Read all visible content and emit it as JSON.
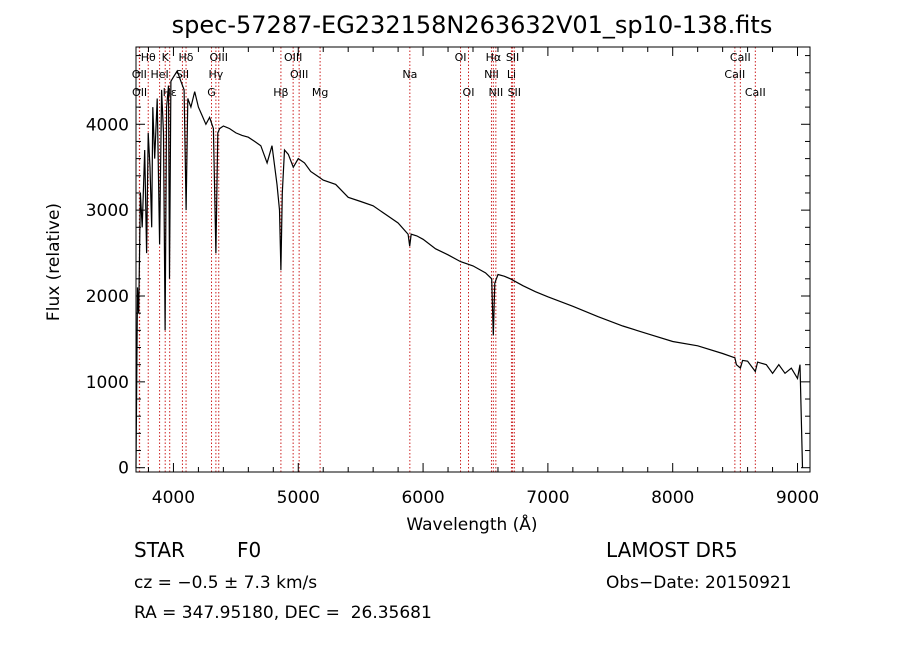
{
  "chart_data": {
    "type": "line",
    "title": "spec-57287-EG232158N263632V01_sp10-138.fits",
    "xlabel": "Wavelength (Å)",
    "ylabel": "Flux (relative)",
    "xlim": [
      3700,
      9100
    ],
    "ylim": [
      -50,
      4900
    ],
    "x_ticks": [
      4000,
      5000,
      6000,
      7000,
      8000,
      9000
    ],
    "y_ticks": [
      0,
      1000,
      2000,
      3000,
      4000
    ],
    "x_tick_labels": [
      "4000",
      "5000",
      "6000",
      "7000",
      "8000",
      "9000"
    ],
    "y_tick_labels": [
      "0",
      "1000",
      "2000",
      "3000",
      "4000"
    ],
    "grid": false,
    "line_color": "#000000",
    "marker_color": "#cc2222",
    "series": [
      {
        "x": [
          3700,
          3712,
          3722,
          3735,
          3750,
          3770,
          3785,
          3798,
          3812,
          3826,
          3835,
          3850,
          3870,
          3889,
          3905,
          3920,
          3933,
          3945,
          3960,
          3968,
          3980,
          4000,
          4030,
          4060,
          4085,
          4101,
          4115,
          4140,
          4170,
          4200,
          4230,
          4260,
          4290,
          4320,
          4340,
          4355,
          4370,
          4400,
          4450,
          4500,
          4550,
          4600,
          4650,
          4700,
          4750,
          4790,
          4830,
          4850,
          4861,
          4872,
          4890,
          4920,
          4960,
          5000,
          5050,
          5100,
          5150,
          5200,
          5300,
          5400,
          5500,
          5600,
          5700,
          5800,
          5880,
          5893,
          5905,
          5950,
          6000,
          6100,
          6200,
          6300,
          6400,
          6500,
          6550,
          6563,
          6575,
          6600,
          6650,
          6700,
          6800,
          6900,
          7000,
          7200,
          7400,
          7600,
          7800,
          8000,
          8200,
          8400,
          8498,
          8510,
          8542,
          8560,
          8600,
          8662,
          8680,
          8750,
          8800,
          8850,
          8900,
          8950,
          9000,
          9020,
          9040
        ],
        "y": [
          0,
          2100,
          1800,
          3200,
          2800,
          3700,
          2500,
          3900,
          3500,
          2800,
          4200,
          3600,
          4300,
          2600,
          4400,
          3900,
          1600,
          4200,
          4450,
          2200,
          4500,
          4550,
          4620,
          4500,
          4400,
          3000,
          4300,
          4200,
          4380,
          4200,
          4100,
          4000,
          4080,
          3950,
          2500,
          3900,
          3950,
          3980,
          3950,
          3900,
          3870,
          3850,
          3800,
          3750,
          3550,
          3750,
          3300,
          3000,
          2300,
          3200,
          3700,
          3650,
          3500,
          3600,
          3550,
          3450,
          3400,
          3350,
          3300,
          3150,
          3100,
          3050,
          2950,
          2850,
          2720,
          2580,
          2720,
          2700,
          2660,
          2550,
          2480,
          2400,
          2350,
          2270,
          2200,
          1540,
          2150,
          2250,
          2230,
          2200,
          2120,
          2050,
          1990,
          1880,
          1760,
          1650,
          1560,
          1470,
          1420,
          1330,
          1280,
          1200,
          1160,
          1250,
          1240,
          1120,
          1230,
          1200,
          1100,
          1200,
          1100,
          1160,
          1040,
          1200,
          0
        ]
      }
    ],
    "lines": [
      {
        "label": "Hθ",
        "x": 3798,
        "row": 0
      },
      {
        "label": "OII",
        "x": 3727,
        "row": 1
      },
      {
        "label": "OII",
        "x": 3729,
        "row": 2
      },
      {
        "label": "K",
        "x": 3934,
        "row": 0
      },
      {
        "label": "HeI",
        "x": 3889,
        "row": 1
      },
      {
        "label": "Hε",
        "x": 3970,
        "row": 2
      },
      {
        "label": "Hδ",
        "x": 4101,
        "row": 0
      },
      {
        "label": "SII",
        "x": 4072,
        "row": 1
      },
      {
        "label": "OIII",
        "x": 4363,
        "row": 0
      },
      {
        "label": "Hγ",
        "x": 4340,
        "row": 1
      },
      {
        "label": "G",
        "x": 4305,
        "row": 2
      },
      {
        "label": "OIII",
        "x": 4959,
        "row": 0
      },
      {
        "label": "OIII",
        "x": 5007,
        "row": 1
      },
      {
        "label": "Hβ",
        "x": 4861,
        "row": 2
      },
      {
        "label": "Mg",
        "x": 5175,
        "row": 2
      },
      {
        "label": "Na",
        "x": 5894,
        "row": 1
      },
      {
        "label": "OI",
        "x": 6300,
        "row": 0
      },
      {
        "label": "OI",
        "x": 6364,
        "row": 2
      },
      {
        "label": "Hα",
        "x": 6563,
        "row": 0
      },
      {
        "label": "NII",
        "x": 6548,
        "row": 1
      },
      {
        "label": "NII",
        "x": 6583,
        "row": 2
      },
      {
        "label": "SII",
        "x": 6717,
        "row": 0
      },
      {
        "label": "Li",
        "x": 6708,
        "row": 1
      },
      {
        "label": "SII",
        "x": 6731,
        "row": 2
      },
      {
        "label": "CaII",
        "x": 8542,
        "row": 0
      },
      {
        "label": "CaII",
        "x": 8498,
        "row": 1
      },
      {
        "label": "CaII",
        "x": 8662,
        "row": 2
      }
    ]
  },
  "info": {
    "class": "STAR",
    "subclass": "F0",
    "survey": "LAMOST DR5",
    "cz": "cz = −0.5 ± 7.3 km/s",
    "obs_date": "Obs−Date: 20150921",
    "coords": "RA = 347.95180, DEC =  26.35681"
  }
}
